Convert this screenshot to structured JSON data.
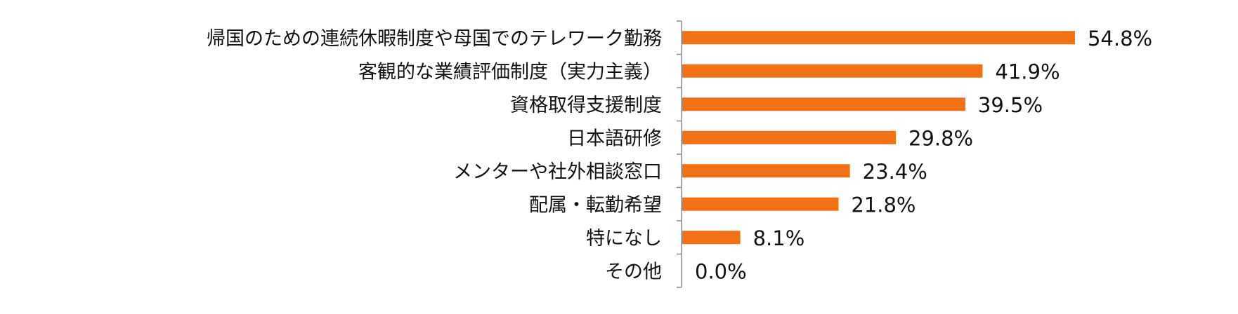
{
  "chart_data": {
    "type": "bar",
    "orientation": "horizontal",
    "categories": [
      "帰国のための連続休暇制度や母国でのテレワーク勤務",
      "客観的な業績評価制度（実力主義）",
      "資格取得支援制度",
      "日本語研修",
      "メンターや社外相談窓口",
      "配属・転勤希望",
      "特になし",
      "その他"
    ],
    "values": [
      54.8,
      41.9,
      39.5,
      29.8,
      23.4,
      21.8,
      8.1,
      0.0
    ],
    "value_labels": [
      "54.8%",
      "41.9%",
      "39.5%",
      "29.8%",
      "23.4%",
      "21.8%",
      "8.1%",
      "0.0%"
    ],
    "unit": "%",
    "xlim": [
      0,
      60
    ],
    "title": "",
    "xlabel": "",
    "ylabel": "",
    "grid": false,
    "legend": "none",
    "colors": {
      "bar": "#F27116",
      "axis": "#8C8C8C",
      "text": "#111111"
    }
  }
}
